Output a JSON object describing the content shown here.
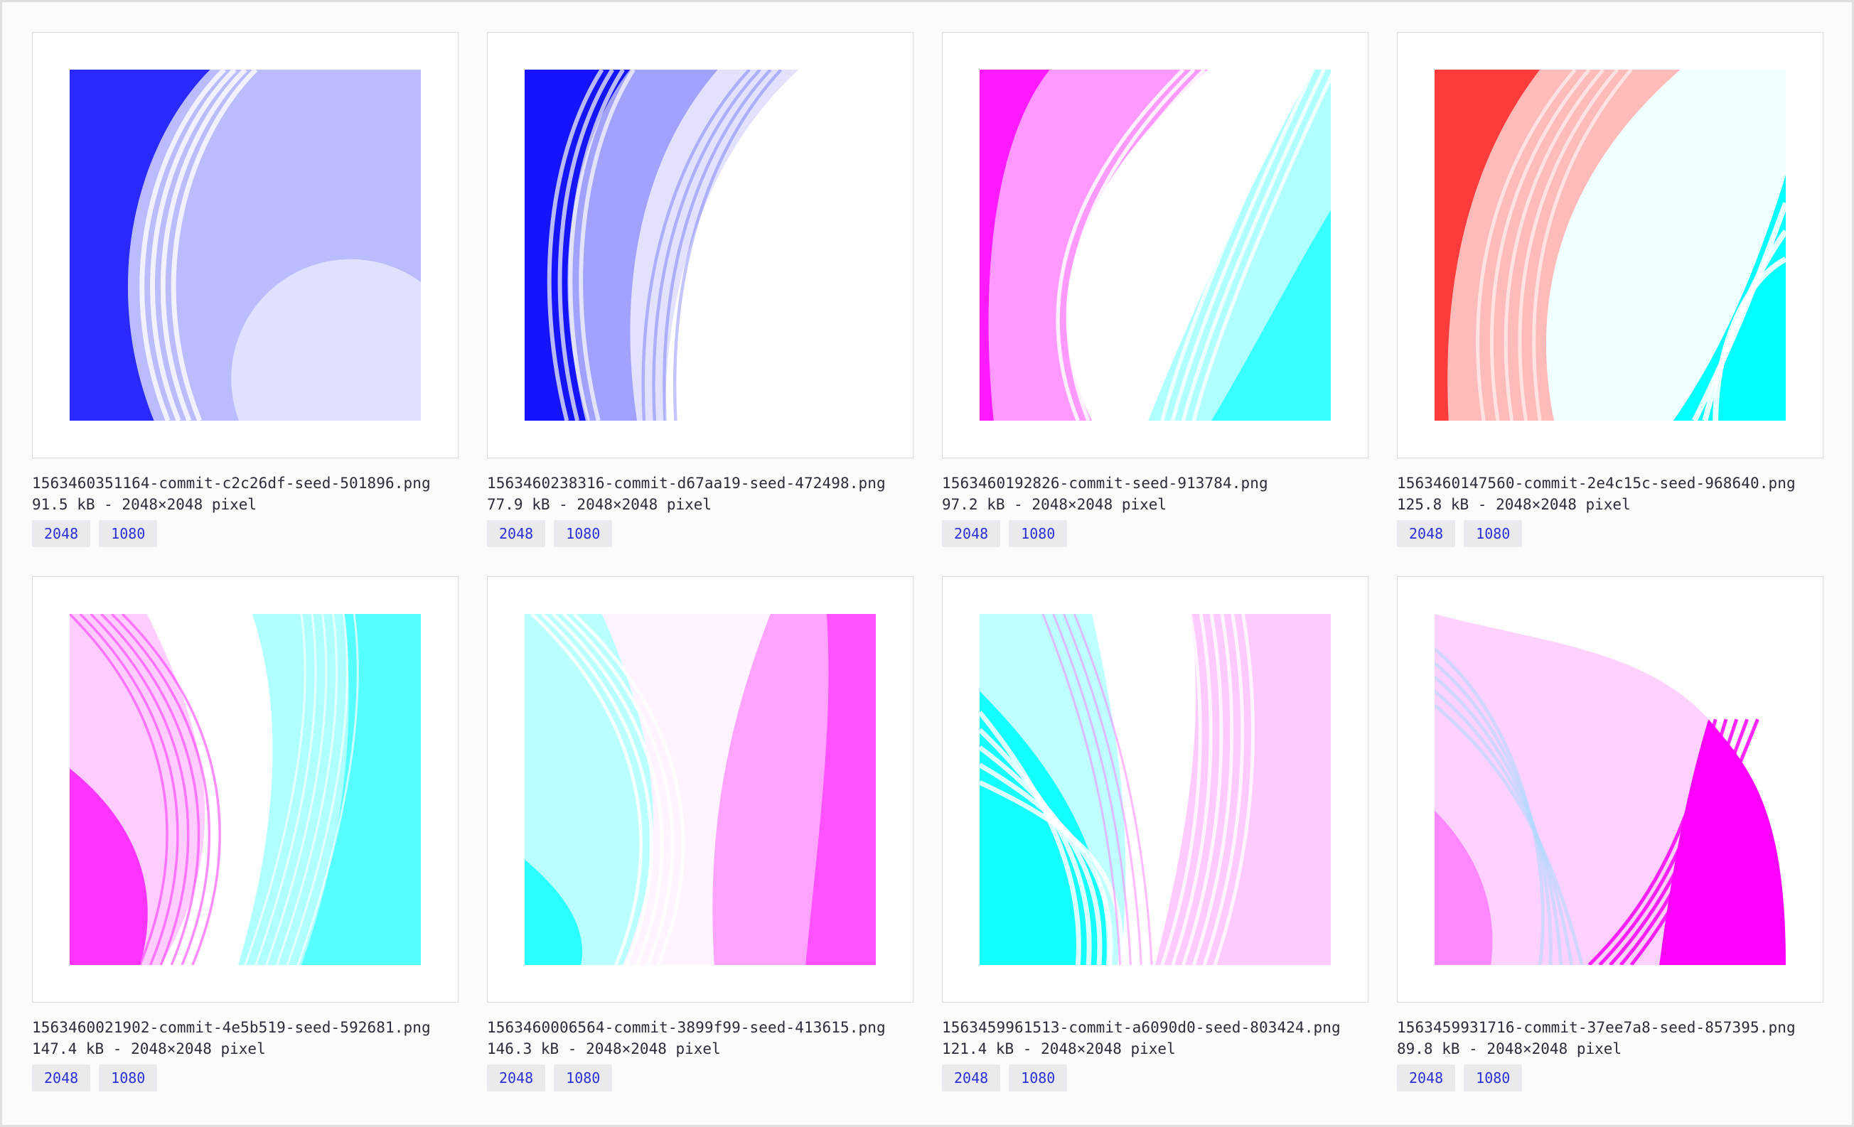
{
  "gallery": {
    "items": [
      {
        "filename": "1563460351164-commit-c2c26df-seed-501896.png",
        "meta": "91.5 kB - 2048×2048 pixel",
        "sizes": [
          "2048",
          "1080"
        ],
        "colors": {
          "primary": "#2a2aff",
          "secondary": "#ffffff"
        }
      },
      {
        "filename": "1563460238316-commit-d67aa19-seed-472498.png",
        "meta": "77.9 kB - 2048×2048 pixel",
        "sizes": [
          "2048",
          "1080"
        ],
        "colors": {
          "primary": "#1414ff",
          "secondary": "#ffffff"
        }
      },
      {
        "filename": "1563460192826-commit-seed-913784.png",
        "meta": "97.2 kB - 2048×2048 pixel",
        "sizes": [
          "2048",
          "1080"
        ],
        "colors": {
          "primary": "#ff1aff",
          "secondary": "#1affff"
        }
      },
      {
        "filename": "1563460147560-commit-2e4c15c-seed-968640.png",
        "meta": "125.8 kB - 2048×2048 pixel",
        "sizes": [
          "2048",
          "1080"
        ],
        "colors": {
          "primary": "#ff1a1a",
          "secondary": "#00ffff"
        }
      },
      {
        "filename": "1563460021902-commit-4e5b519-seed-592681.png",
        "meta": "147.4 kB - 2048×2048 pixel",
        "sizes": [
          "2048",
          "1080"
        ],
        "colors": {
          "primary": "#ff1aff",
          "secondary": "#1affff"
        }
      },
      {
        "filename": "1563460006564-commit-3899f99-seed-413615.png",
        "meta": "146.3 kB - 2048×2048 pixel",
        "sizes": [
          "2048",
          "1080"
        ],
        "colors": {
          "primary": "#1affff",
          "secondary": "#ff1aff"
        }
      },
      {
        "filename": "1563459961513-commit-a6090d0-seed-803424.png",
        "meta": "121.4 kB - 2048×2048 pixel",
        "sizes": [
          "2048",
          "1080"
        ],
        "colors": {
          "primary": "#00ffff",
          "secondary": "#ff66ff"
        }
      },
      {
        "filename": "1563459931716-commit-37ee7a8-seed-857395.png",
        "meta": "89.8 kB - 2048×2048 pixel",
        "sizes": [
          "2048",
          "1080"
        ],
        "colors": {
          "primary": "#ffd1ff",
          "secondary": "#ff00ff"
        }
      }
    ]
  }
}
